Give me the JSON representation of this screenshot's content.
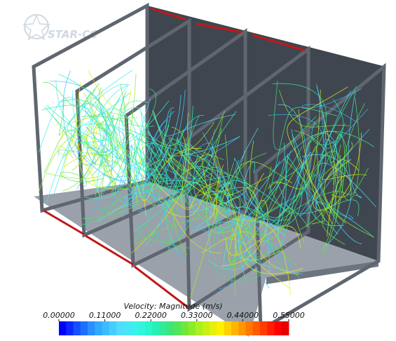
{
  "logo": "STAR-CC",
  "colorbar": {
    "title": "Velocity: Magnitude (m/s)",
    "lim": [
      0,
      0.55
    ],
    "ticks": [
      {
        "value": 0,
        "label": "0.00000"
      },
      {
        "value": 0.11,
        "label": "0.11000"
      },
      {
        "value": 0.22,
        "label": "0.22000"
      },
      {
        "value": 0.33,
        "label": "0.33000"
      },
      {
        "value": 0.44,
        "label": "0.44000"
      },
      {
        "value": 0.55,
        "label": "0.55000"
      }
    ],
    "colors": [
      "#0000ff",
      "#0a28ff",
      "#1450ff",
      "#1e6eff",
      "#2890ff",
      "#32a8ff",
      "#3cbcff",
      "#46cdff",
      "#50dcff",
      "#46e6f5",
      "#3cf0eb",
      "#32f5dc",
      "#28f5c8",
      "#28f0b4",
      "#32eb96",
      "#3ce678",
      "#50e65a",
      "#6ee63c",
      "#8ceb28",
      "#aaf01e",
      "#c8f014",
      "#e6f00a",
      "#fff000",
      "#ffd200",
      "#ffb400",
      "#ff9600",
      "#ff7800",
      "#ff5a00",
      "#ff3c00",
      "#ff1e00",
      "#ff0000",
      "#e60000"
    ]
  }
}
